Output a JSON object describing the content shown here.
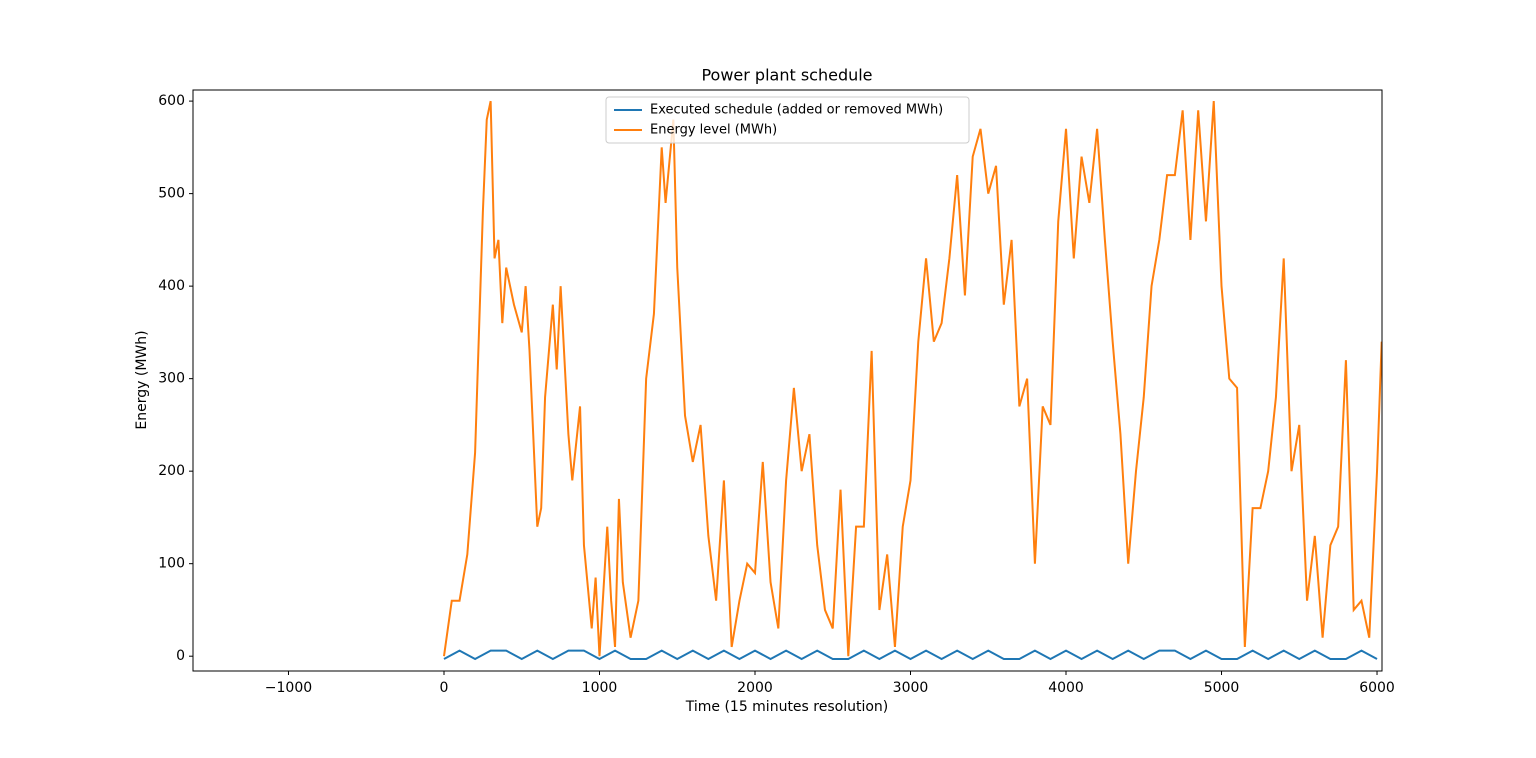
{
  "chart_data": {
    "type": "line",
    "title": "Power plant schedule",
    "x_label": "Time (15 minutes resolution)",
    "y_label": "Energy (MWh)",
    "xlim": [
      -1614,
      6032
    ],
    "ylim": [
      -16,
      612
    ],
    "xticks": [
      {
        "value": -1000,
        "label": "−1000"
      },
      0,
      1000,
      2000,
      3000,
      4000,
      5000,
      6000
    ],
    "yticks": [
      0,
      100,
      200,
      300,
      400,
      500,
      600
    ],
    "legend": "upper center",
    "series": [
      {
        "name": "Executed schedule (added or removed MWh)",
        "color": "#1f77b4",
        "x": [
          0,
          100,
          200,
          300,
          400,
          500,
          600,
          700,
          800,
          900,
          1000,
          1100,
          1200,
          1300,
          1400,
          1500,
          1600,
          1700,
          1800,
          1900,
          2000,
          2100,
          2200,
          2300,
          2400,
          2500,
          2600,
          2700,
          2800,
          2900,
          3000,
          3100,
          3200,
          3300,
          3400,
          3500,
          3600,
          3700,
          3800,
          3900,
          4000,
          4100,
          4200,
          4300,
          4400,
          4500,
          4600,
          4700,
          4800,
          4900,
          5000,
          5100,
          5200,
          5300,
          5400,
          5500,
          5600,
          5700,
          5800,
          5900,
          6000
        ],
        "values": [
          -3,
          6,
          -3,
          6,
          6,
          -3,
          6,
          -3,
          6,
          6,
          -3,
          6,
          -3,
          -3,
          6,
          -3,
          6,
          -3,
          6,
          -3,
          6,
          -3,
          6,
          -3,
          6,
          -3,
          -3,
          6,
          -3,
          6,
          -3,
          6,
          -3,
          6,
          -3,
          6,
          -3,
          -3,
          6,
          -3,
          6,
          -3,
          6,
          -3,
          6,
          -3,
          6,
          6,
          -3,
          6,
          -3,
          -3,
          6,
          -3,
          6,
          -3,
          6,
          -3,
          -3,
          6,
          -3
        ]
      },
      {
        "name": "Energy level (MWh)",
        "color": "#ff7f0e",
        "x": [
          0,
          50,
          100,
          150,
          200,
          250,
          275,
          300,
          325,
          350,
          375,
          400,
          450,
          500,
          525,
          550,
          600,
          625,
          650,
          700,
          725,
          750,
          800,
          825,
          875,
          900,
          950,
          975,
          1000,
          1050,
          1075,
          1100,
          1125,
          1150,
          1200,
          1250,
          1300,
          1350,
          1400,
          1425,
          1475,
          1500,
          1550,
          1600,
          1650,
          1700,
          1750,
          1800,
          1850,
          1900,
          1950,
          2000,
          2050,
          2100,
          2150,
          2200,
          2250,
          2300,
          2350,
          2400,
          2450,
          2500,
          2550,
          2600,
          2650,
          2700,
          2750,
          2800,
          2850,
          2900,
          2950,
          3000,
          3050,
          3100,
          3150,
          3200,
          3250,
          3300,
          3350,
          3400,
          3450,
          3500,
          3550,
          3600,
          3650,
          3700,
          3750,
          3800,
          3850,
          3900,
          3950,
          4000,
          4050,
          4100,
          4150,
          4200,
          4250,
          4300,
          4350,
          4400,
          4450,
          4500,
          4550,
          4600,
          4650,
          4700,
          4750,
          4800,
          4850,
          4900,
          4950,
          5000,
          5050,
          5100,
          5150,
          5200,
          5250,
          5300,
          5350,
          5400,
          5450,
          5500,
          5550,
          5600,
          5650,
          5700,
          5750,
          5800,
          5850,
          5900,
          5950,
          6000,
          6030
        ],
        "values": [
          0,
          60,
          60,
          110,
          220,
          480,
          580,
          600,
          430,
          450,
          360,
          420,
          380,
          350,
          400,
          330,
          140,
          160,
          280,
          380,
          310,
          400,
          240,
          190,
          270,
          120,
          30,
          85,
          0,
          140,
          60,
          10,
          170,
          80,
          20,
          60,
          300,
          370,
          550,
          490,
          580,
          420,
          260,
          210,
          250,
          130,
          60,
          190,
          10,
          60,
          100,
          90,
          210,
          80,
          30,
          190,
          290,
          200,
          240,
          120,
          50,
          30,
          180,
          0,
          140,
          140,
          330,
          50,
          110,
          10,
          140,
          190,
          340,
          430,
          340,
          360,
          430,
          520,
          390,
          540,
          570,
          500,
          530,
          380,
          450,
          270,
          300,
          100,
          270,
          250,
          470,
          570,
          430,
          540,
          490,
          570,
          450,
          340,
          240,
          100,
          200,
          280,
          400,
          450,
          520,
          520,
          590,
          450,
          590,
          470,
          600,
          400,
          300,
          290,
          10,
          160,
          160,
          200,
          280,
          430,
          200,
          250,
          60,
          130,
          20,
          120,
          140,
          320,
          50,
          60,
          20,
          200,
          340
        ]
      }
    ]
  }
}
